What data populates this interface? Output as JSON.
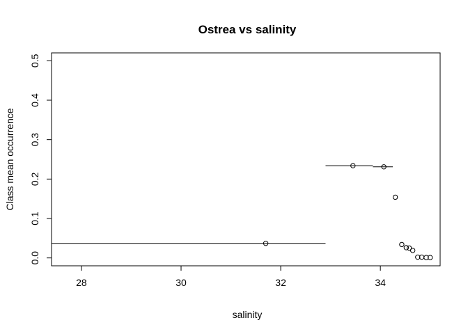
{
  "chart_data": {
    "type": "scatter",
    "title": "Ostrea vs salinity",
    "xlabel": "salinity",
    "ylabel": "Class mean occurrence",
    "xlim": [
      27.4,
      35.2
    ],
    "ylim": [
      -0.02,
      0.52
    ],
    "x_ticks": [
      28,
      30,
      32,
      34
    ],
    "y_ticks": [
      0.0,
      0.1,
      0.2,
      0.3,
      0.4,
      0.5
    ],
    "x_tick_labels": [
      "28",
      "30",
      "32",
      "34"
    ],
    "y_tick_labels": [
      "0.0",
      "0.1",
      "0.2",
      "0.3",
      "0.4",
      "0.5"
    ],
    "grid": false,
    "points": [
      {
        "x": 31.7,
        "y": 0.037,
        "xmin": 27.4,
        "xmax": 32.9
      },
      {
        "x": 33.45,
        "y": 0.234,
        "xmin": 32.9,
        "xmax": 33.85
      },
      {
        "x": 34.07,
        "y": 0.231,
        "xmin": 33.85,
        "xmax": 34.25
      },
      {
        "x": 34.3,
        "y": 0.154
      },
      {
        "x": 34.43,
        "y": 0.034
      },
      {
        "x": 34.52,
        "y": 0.026
      },
      {
        "x": 34.58,
        "y": 0.025
      },
      {
        "x": 34.65,
        "y": 0.019
      },
      {
        "x": 34.75,
        "y": 0.002
      },
      {
        "x": 34.83,
        "y": 0.002
      },
      {
        "x": 34.92,
        "y": 0.001
      },
      {
        "x": 35.0,
        "y": 0.001
      }
    ]
  }
}
